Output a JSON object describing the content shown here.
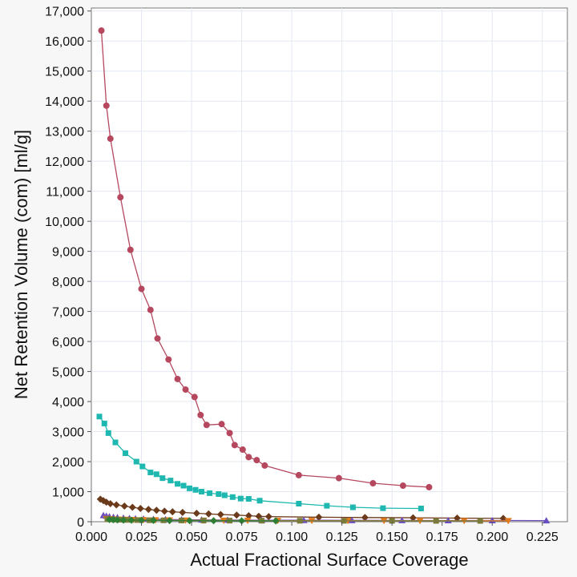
{
  "chart_data": {
    "type": "line",
    "xlabel": "Actual Fractional Surface Coverage",
    "ylabel": "Net Retention Volume (com) [ml/g]",
    "xlim": [
      0,
      0.2375
    ],
    "ylim": [
      0,
      17100
    ],
    "xticks": [
      0.0,
      0.025,
      0.05,
      0.075,
      0.1,
      0.125,
      0.15,
      0.175,
      0.2,
      0.225
    ],
    "xtick_labels": [
      "0.000",
      "0.025",
      "0.050",
      "0.075",
      "0.100",
      "0.125",
      "0.150",
      "0.175",
      "0.200",
      "0.225"
    ],
    "yticks": [
      0,
      1000,
      2000,
      3000,
      4000,
      5000,
      6000,
      7000,
      8000,
      9000,
      10000,
      11000,
      12000,
      13000,
      14000,
      15000,
      16000,
      17000
    ],
    "ytick_labels": [
      "0",
      "1,000",
      "2,000",
      "3,000",
      "4,000",
      "5,000",
      "6,000",
      "7,000",
      "8,000",
      "9,000",
      "10,000",
      "11,000",
      "12,000",
      "13,000",
      "14,000",
      "15,000",
      "16,000",
      "17,000"
    ],
    "grid": true,
    "series": [
      {
        "color": "#b5485e",
        "marker": "circle",
        "x": [
          0.005,
          0.0075,
          0.0095,
          0.0145,
          0.0195,
          0.025,
          0.0295,
          0.033,
          0.0385,
          0.043,
          0.047,
          0.0515,
          0.0545,
          0.0575,
          0.065,
          0.069,
          0.0715,
          0.0755,
          0.0785,
          0.0825,
          0.0865,
          0.1035,
          0.1235,
          0.1405,
          0.1555,
          0.1685
        ],
        "y": [
          16350,
          13850,
          12750,
          10800,
          9050,
          7750,
          7050,
          6100,
          5400,
          4750,
          4400,
          4150,
          3550,
          3220,
          3250,
          2950,
          2550,
          2400,
          2150,
          2050,
          1870,
          1550,
          1450,
          1280,
          1200,
          1150
        ]
      },
      {
        "color": "#1fb8b0",
        "marker": "square",
        "x": [
          0.004,
          0.0065,
          0.0085,
          0.012,
          0.017,
          0.0225,
          0.0255,
          0.0295,
          0.0325,
          0.0355,
          0.0395,
          0.043,
          0.046,
          0.049,
          0.052,
          0.055,
          0.059,
          0.0635,
          0.0665,
          0.0705,
          0.0745,
          0.0785,
          0.084,
          0.1035,
          0.1175,
          0.1305,
          0.1455,
          0.1645
        ],
        "y": [
          3500,
          3270,
          2950,
          2640,
          2280,
          2000,
          1840,
          1640,
          1580,
          1450,
          1370,
          1260,
          1200,
          1110,
          1060,
          1000,
          950,
          920,
          880,
          820,
          770,
          760,
          700,
          600,
          530,
          480,
          450,
          440
        ]
      },
      {
        "color": "#6b3a1a",
        "marker": "diamond",
        "x": [
          0.0045,
          0.006,
          0.0075,
          0.0095,
          0.0125,
          0.0165,
          0.0205,
          0.0245,
          0.0285,
          0.0325,
          0.0365,
          0.0405,
          0.0455,
          0.0525,
          0.0585,
          0.0645,
          0.0725,
          0.0785,
          0.0835,
          0.0885,
          0.1135,
          0.1365,
          0.1605,
          0.1825,
          0.2055
        ],
        "y": [
          750,
          700,
          650,
          600,
          560,
          520,
          480,
          440,
          410,
          380,
          350,
          330,
          310,
          280,
          260,
          240,
          220,
          200,
          180,
          170,
          150,
          140,
          130,
          120,
          110
        ]
      },
      {
        "color": "#6a4fc0",
        "marker": "triangle-up",
        "x": [
          0.006,
          0.0075,
          0.009,
          0.011,
          0.013,
          0.016,
          0.019,
          0.022,
          0.026,
          0.031,
          0.037,
          0.045,
          0.055,
          0.068,
          0.085,
          0.106,
          0.13,
          0.155,
          0.178,
          0.2,
          0.227
        ],
        "y": [
          210,
          190,
          170,
          150,
          140,
          125,
          115,
          105,
          95,
          85,
          75,
          68,
          62,
          56,
          52,
          48,
          45,
          43,
          41,
          40,
          38
        ]
      },
      {
        "color": "#e07a1c",
        "marker": "triangle-down",
        "x": [
          0.0075,
          0.009,
          0.011,
          0.0135,
          0.017,
          0.021,
          0.026,
          0.032,
          0.039,
          0.047,
          0.056,
          0.066,
          0.078,
          0.093,
          0.11,
          0.128,
          0.146,
          0.164,
          0.186,
          0.208
        ],
        "y": [
          100,
          92,
          85,
          78,
          72,
          66,
          60,
          56,
          52,
          48,
          45,
          42,
          40,
          38,
          36,
          34,
          33,
          32,
          31,
          30
        ]
      },
      {
        "color": "#7a7a3a",
        "marker": "square",
        "x": [
          0.008,
          0.0095,
          0.0115,
          0.014,
          0.018,
          0.023,
          0.029,
          0.036,
          0.045,
          0.056,
          0.069,
          0.085,
          0.104,
          0.126,
          0.15,
          0.172,
          0.194
        ],
        "y": [
          85,
          78,
          72,
          66,
          60,
          55,
          50,
          46,
          42,
          39,
          36,
          34,
          32,
          30,
          29,
          28,
          27
        ]
      },
      {
        "color": "#2e7d32",
        "marker": "diamond",
        "x": [
          0.009,
          0.011,
          0.013,
          0.016,
          0.02,
          0.025,
          0.031,
          0.039,
          0.049,
          0.061,
          0.075,
          0.092
        ],
        "y": [
          70,
          64,
          59,
          54,
          50,
          46,
          42,
          38,
          35,
          32,
          30,
          28
        ]
      }
    ]
  }
}
